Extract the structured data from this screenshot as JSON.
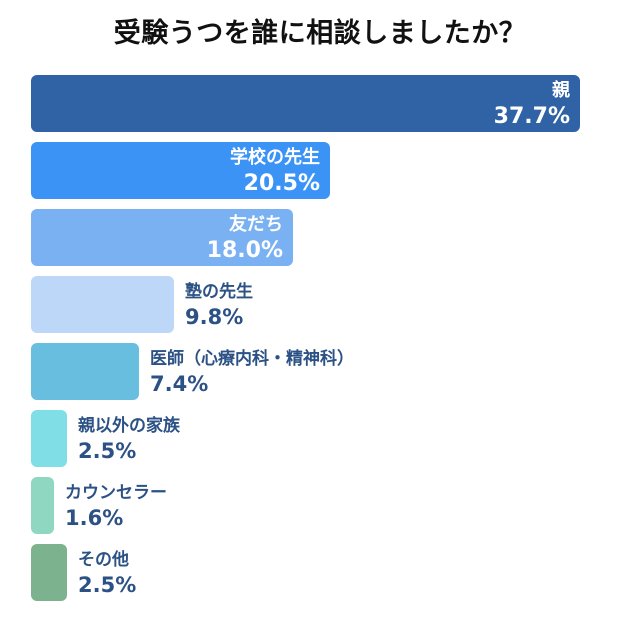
{
  "chart_data": {
    "type": "bar",
    "orientation": "horizontal",
    "title": "受験うつを誰に相談しましたか？",
    "categories": [
      "親",
      "学校の先生",
      "友だち",
      "塾の先生",
      "医師（心療内科・精神科）",
      "親以外の家族",
      "カウンセラー",
      "その他"
    ],
    "values": [
      37.7,
      20.5,
      18.0,
      9.8,
      7.4,
      2.5,
      1.6,
      2.5
    ],
    "value_labels": [
      "37.7%",
      "20.5%",
      "18.0%",
      "9.8%",
      "7.4%",
      "2.5%",
      "1.6%",
      "2.5%"
    ],
    "bar_colors": [
      "#3063a5",
      "#3c93f6",
      "#7ab1f3",
      "#bcd7f8",
      "#68bedf",
      "#7fdee6",
      "#8fd7c0",
      "#7cb28d"
    ],
    "label_inside": [
      true,
      true,
      true,
      false,
      false,
      false,
      false,
      false
    ],
    "label_colors": {
      "inside": "#ffffff",
      "outside": "#2b5185"
    },
    "xlim": [
      0,
      37.7
    ],
    "grid": false,
    "legend": false
  }
}
